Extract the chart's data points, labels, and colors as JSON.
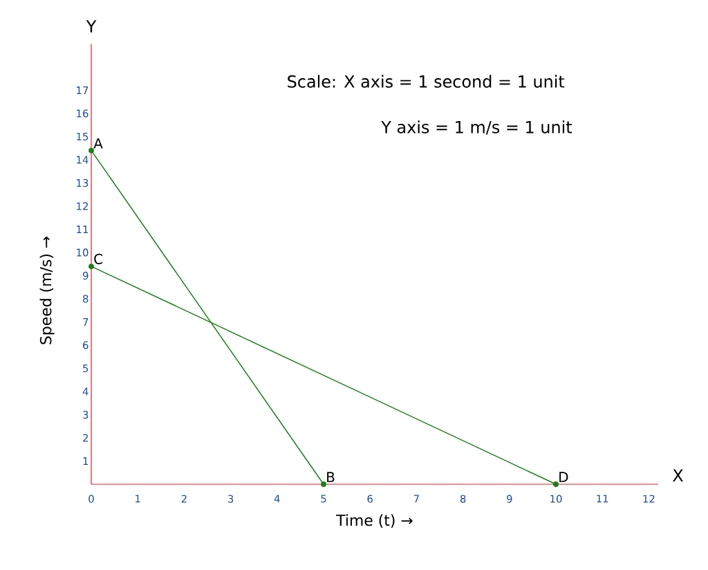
{
  "chart_data": {
    "type": "line",
    "xlabel": "Time (t) →",
    "ylabel": "Speed (m/s) →",
    "xlim": [
      0,
      12.2
    ],
    "ylim": [
      0,
      19
    ],
    "xticks": [
      0,
      1,
      2,
      3,
      4,
      5,
      6,
      7,
      8,
      9,
      10,
      11,
      12
    ],
    "yticks": [
      1,
      2,
      3,
      4,
      5,
      6,
      7,
      8,
      9,
      10,
      11,
      12,
      13,
      14,
      15,
      16,
      17
    ],
    "series": [
      {
        "color": "#1a7f1a",
        "x": [
          0,
          5
        ],
        "values": [
          14.4,
          0
        ]
      },
      {
        "color": "#1a7f1a",
        "x": [
          0,
          10
        ],
        "values": [
          9.4,
          0
        ]
      }
    ],
    "marker": "circle",
    "grid": false,
    "annotations": [
      "Scale: X axis = 1 second = 1 unit",
      "Y axis = 1 m/s = 1 unit",
      {
        "text": "A",
        "x": 0,
        "y": 14.4
      },
      {
        "text": "B",
        "x": 5,
        "y": 0
      },
      {
        "text": "C",
        "x": 0,
        "y": 9.4
      },
      {
        "text": "D",
        "x": 10,
        "y": 0
      },
      "X",
      "Y"
    ]
  }
}
